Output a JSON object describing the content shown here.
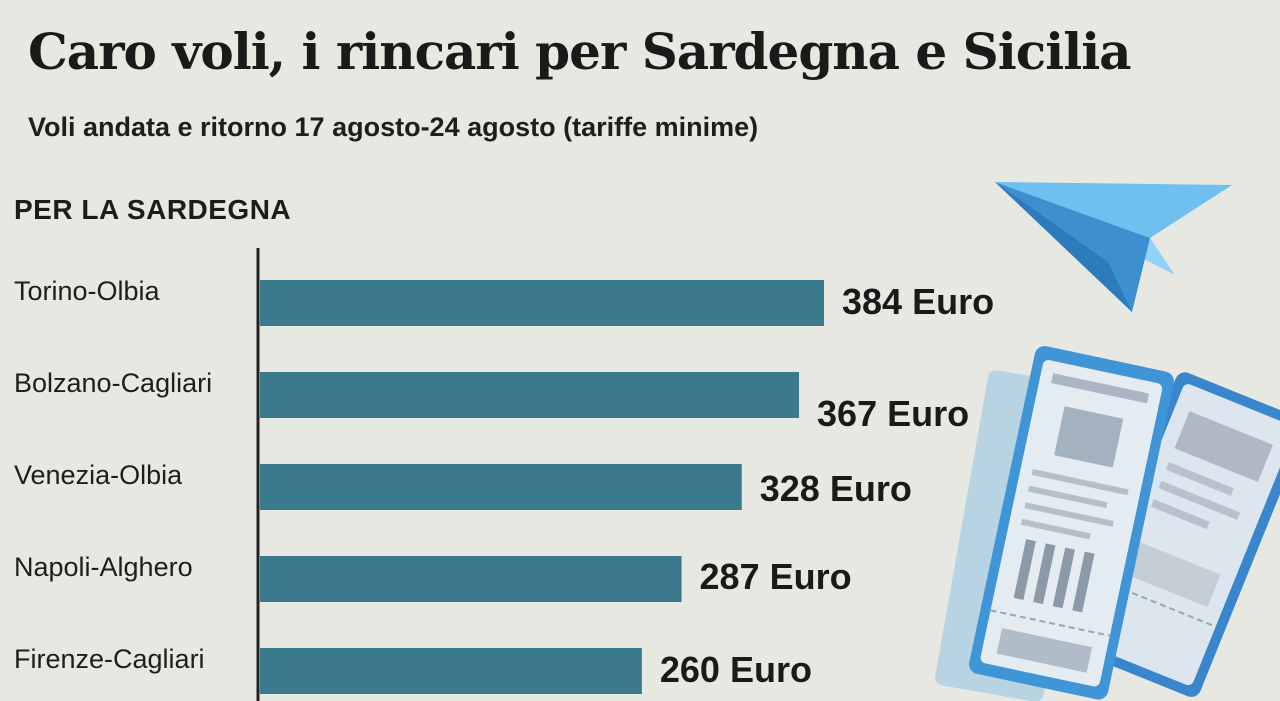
{
  "header": {
    "title": "Caro voli, i rincari per Sardegna e Sicilia",
    "subtitle": "Voli andata e ritorno 17 agosto-24 agosto (tariffe minime)"
  },
  "section_label": "PER LA SARDEGNA",
  "colors": {
    "bar": "#3a7a8c",
    "axis": "#222222",
    "background": "#e8e8e2",
    "plane": "#4a9fd8",
    "ticket": "#3f8fd0"
  },
  "icons": [
    "paper-plane-icon",
    "boarding-pass-icon"
  ],
  "chart_data": {
    "type": "bar",
    "orientation": "horizontal",
    "categories": [
      "Torino-Olbia",
      "Bolzano-Cagliari",
      "Venezia-Olbia",
      "Napoli-Alghero",
      "Firenze-Cagliari"
    ],
    "values": [
      384,
      367,
      328,
      287,
      260
    ],
    "value_labels": [
      "384 Euro",
      "367 Euro",
      "328 Euro",
      "287 Euro",
      "260 Euro"
    ],
    "unit": "Euro",
    "xlim": [
      0,
      384
    ],
    "grid": false,
    "legend": "none"
  }
}
